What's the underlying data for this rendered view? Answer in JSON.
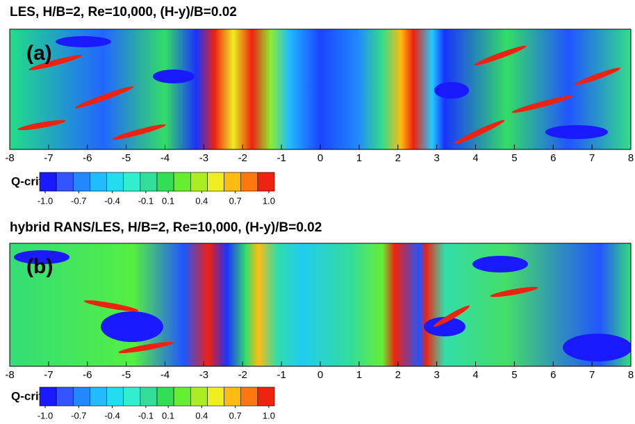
{
  "chart_data": [
    {
      "type": "contour",
      "title": "LES, H/B=2, Re=10,000, (H-y)/B=0.02",
      "panel_label": "(a)",
      "xlim": [
        -8,
        8
      ],
      "xticks": [
        -8,
        -7,
        -6,
        -5,
        -4,
        -3,
        -2,
        -1,
        0,
        1,
        2,
        3,
        4,
        5,
        6,
        7,
        8
      ],
      "colorbar": {
        "label": "Q-crit",
        "clim": [
          -1.05,
          1.05
        ],
        "colors": [
          "#1a1aff",
          "#3355ff",
          "#2288ff",
          "#22bbff",
          "#22ddee",
          "#33eecc",
          "#33dd99",
          "#33dd55",
          "#66ee33",
          "#aaee22",
          "#eeee22",
          "#ffbb11",
          "#ff7711",
          "#ee2211"
        ],
        "ticks": [
          {
            "value": -1,
            "label": "-1.0"
          },
          -0.7,
          -0.4,
          -0.1,
          0.1,
          0.4,
          0.7,
          {
            "value": 1,
            "label": "1.0"
          }
        ]
      }
    },
    {
      "type": "contour",
      "title": "hybrid RANS/LES, H/B=2, Re=10,000, (H-y)/B=0.02",
      "panel_label": "(b)",
      "xlim": [
        -8,
        8
      ],
      "xticks": [
        -8,
        -7,
        -6,
        -5,
        -4,
        -3,
        -2,
        -1,
        0,
        1,
        2,
        3,
        4,
        5,
        6,
        7,
        8
      ],
      "colorbar": {
        "label": "Q-crit",
        "clim": [
          -1.05,
          1.05
        ],
        "colors": [
          "#1a1aff",
          "#3355ff",
          "#2288ff",
          "#22bbff",
          "#22ddee",
          "#33eecc",
          "#33dd99",
          "#33dd55",
          "#66ee33",
          "#aaee22",
          "#eeee22",
          "#ffbb11",
          "#ff7711",
          "#ee2211"
        ],
        "ticks": [
          {
            "value": -1,
            "label": "-1.0"
          },
          -0.7,
          -0.4,
          -0.1,
          0.1,
          0.4,
          0.7,
          {
            "value": 1,
            "label": "1.0"
          }
        ]
      }
    }
  ]
}
